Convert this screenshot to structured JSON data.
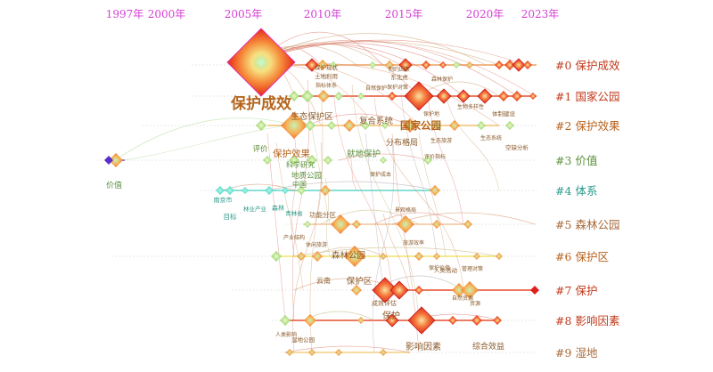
{
  "years": [
    "1997年",
    "2000年",
    "2005年",
    "2010年",
    "2015年",
    "2020年",
    "2023年"
  ],
  "clusters": [
    {
      "id": "#0",
      "name": "保护成效",
      "color": "#c0391b"
    },
    {
      "id": "#1",
      "name": "国家公园",
      "color": "#c0391b"
    },
    {
      "id": "#2",
      "name": "保护效果",
      "color": "#b7621c"
    },
    {
      "id": "#3",
      "name": "价值",
      "color": "#5a8f3a"
    },
    {
      "id": "#4",
      "name": "体系",
      "color": "#2a9a8a"
    },
    {
      "id": "#5",
      "name": "森林公园",
      "color": "#a86a3a"
    },
    {
      "id": "#6",
      "name": "保护区",
      "color": "#b7621c"
    },
    {
      "id": "#7",
      "name": "保护",
      "color": "#c0391b"
    },
    {
      "id": "#8",
      "name": "影响因素",
      "color": "#c0391b"
    },
    {
      "id": "#9",
      "name": "湿地",
      "color": "#a86a3a"
    }
  ],
  "keywords": [
    {
      "text": "保护成效",
      "size": 17,
      "color": "#b5651d"
    },
    {
      "text": "保护效果",
      "size": 10.5,
      "color": "#b5651d"
    },
    {
      "text": "生态保护区",
      "size": 9.5,
      "color": "#8a5a2a"
    },
    {
      "text": "复合系统",
      "size": 9.5,
      "color": "#8a5a2a"
    },
    {
      "text": "国家公园",
      "size": 11.5,
      "color": "#b5651d"
    },
    {
      "text": "分布格局",
      "size": 9,
      "color": "#8a5a2a"
    },
    {
      "text": "评价",
      "size": 8.5,
      "color": "#5a8f3a"
    },
    {
      "text": "科学研究",
      "size": 8,
      "color": "#5a8f3a"
    },
    {
      "text": "地质公园",
      "size": 8.5,
      "color": "#5a8f3a"
    },
    {
      "text": "中国",
      "size": 8,
      "color": "#5a8f3a"
    },
    {
      "text": "就地保护",
      "size": 9.5,
      "color": "#5a8f3a"
    },
    {
      "text": "价值",
      "size": 9,
      "color": "#5a8f3a"
    },
    {
      "text": "南京市",
      "size": 7,
      "color": "#2a9a8a"
    },
    {
      "text": "森林",
      "size": 7,
      "color": "#2a9a8a"
    },
    {
      "text": "目标",
      "size": 7.5,
      "color": "#2a9a8a"
    },
    {
      "text": "林业产业",
      "size": 6.5,
      "color": "#2a9a8a"
    },
    {
      "text": "青林省",
      "size": 6.5,
      "color": "#2a9a8a"
    },
    {
      "text": "功能分区",
      "size": 7.5,
      "color": "#8a5a2a"
    },
    {
      "text": "森林公园",
      "size": 9.5,
      "color": "#8a5a2a"
    },
    {
      "text": "云南",
      "size": 8,
      "color": "#8a5a2a"
    },
    {
      "text": "保护区",
      "size": 9.5,
      "color": "#8a5a2a"
    },
    {
      "text": "成效评估",
      "size": 7,
      "color": "#8a5a2a"
    },
    {
      "text": "保护",
      "size": 10,
      "color": "#8a5a2a"
    },
    {
      "text": "影响因素",
      "size": 10,
      "color": "#8a5a2a"
    },
    {
      "text": "综合效益",
      "size": 9,
      "color": "#8a5a2a"
    },
    {
      "text": "人类活动",
      "size": 6.5,
      "color": "#8a5a2a"
    },
    {
      "text": "湿地公园",
      "size": 6.5,
      "color": "#8a5a2a"
    },
    {
      "text": "保护现状",
      "size": 6.5,
      "color": "#8a5a2a"
    },
    {
      "text": "土地利用",
      "size": 6.5,
      "color": "#8a5a2a"
    },
    {
      "text": "指标体系",
      "size": 6,
      "color": "#8a5a2a"
    },
    {
      "text": "自然保护",
      "size": 6,
      "color": "#8a5a2a"
    },
    {
      "text": "制约因素",
      "size": 6,
      "color": "#8a5a2a"
    },
    {
      "text": "东北虎",
      "size": 6.5,
      "color": "#8a5a2a"
    },
    {
      "text": "保护对策",
      "size": 6,
      "color": "#8a5a2a"
    },
    {
      "text": "森林保护",
      "size": 6,
      "color": "#8a5a2a"
    },
    {
      "text": "保护地",
      "size": 6,
      "color": "#8a5a2a"
    },
    {
      "text": "体制建设",
      "size": 6.5,
      "color": "#8a5a2a"
    },
    {
      "text": "空缺分析",
      "size": 6.5,
      "color": "#8a5a2a"
    },
    {
      "text": "景观格局",
      "size": 6,
      "color": "#8a5a2a"
    },
    {
      "text": "旅游效率",
      "size": 6,
      "color": "#8a5a2a"
    },
    {
      "text": "保护价值",
      "size": 6,
      "color": "#8a5a2a"
    },
    {
      "text": "管理对策",
      "size": 6,
      "color": "#8a5a2a"
    },
    {
      "text": "生物多样性",
      "size": 6,
      "color": "#8a5a2a"
    },
    {
      "text": "生态系统",
      "size": 6,
      "color": "#8a5a2a"
    },
    {
      "text": "生态旅游",
      "size": 6,
      "color": "#8a5a2a"
    },
    {
      "text": "评价指标",
      "size": 6,
      "color": "#8a5a2a"
    },
    {
      "text": "保护成本",
      "size": 6,
      "color": "#8a5a2a"
    },
    {
      "text": "产业结构",
      "size": 6,
      "color": "#8a5a2a"
    },
    {
      "text": "休闲旅游",
      "size": 6,
      "color": "#8a5a2a"
    },
    {
      "text": "自然资源",
      "size": 6,
      "color": "#8a5a2a"
    },
    {
      "text": "资源",
      "size": 6,
      "color": "#8a5a2a"
    },
    {
      "text": "人类影响",
      "size": 6,
      "color": "#8a5a2a"
    }
  ]
}
